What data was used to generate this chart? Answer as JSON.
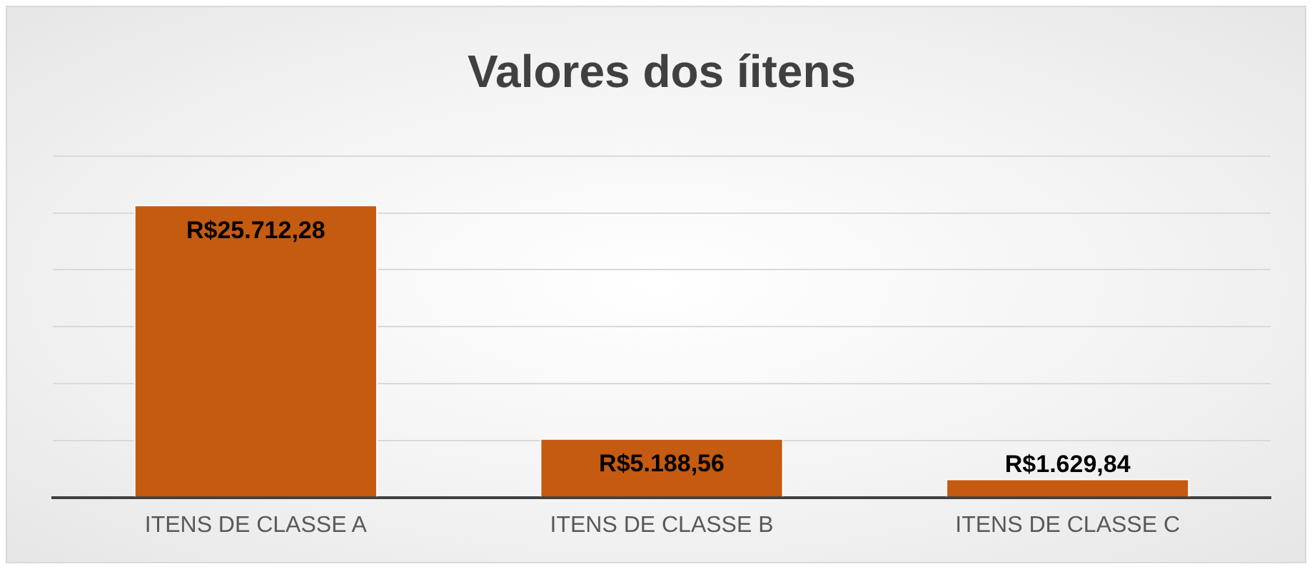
{
  "chart_data": {
    "type": "bar",
    "title": "Valores dos íitens",
    "categories": [
      "ITENS DE CLASSE A",
      "ITENS DE CLASSE B",
      "ITENS DE CLASSE C"
    ],
    "values": [
      25712.28,
      5188.56,
      1629.84
    ],
    "color": "#c55a11",
    "value_labels": [
      "R$25.712,28",
      "R$5.188,56",
      "R$1.629,84"
    ],
    "ylim": [
      0,
      30000
    ],
    "yticks": [
      {
        "value": 0,
        "label": null
      },
      {
        "value": 5000,
        "label": null
      },
      {
        "value": 10000,
        "label": null
      },
      {
        "value": 15000,
        "label": null
      },
      {
        "value": 20000,
        "label": null
      },
      {
        "value": 25000,
        "label": null
      },
      {
        "value": 30000,
        "label": null
      }
    ],
    "tick_labels": "x",
    "grid": "y",
    "legend": false
  }
}
